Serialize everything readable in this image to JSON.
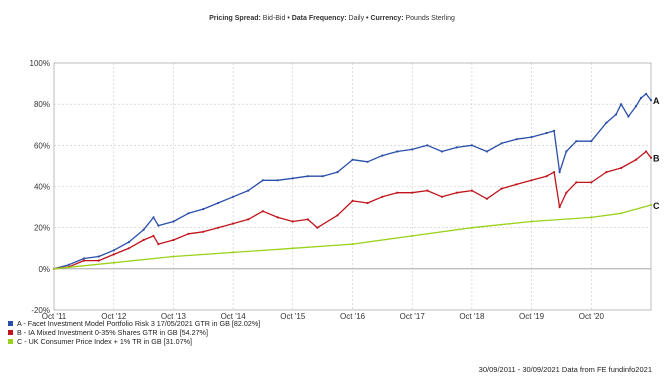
{
  "header": {
    "spread_label": "Pricing Spread:",
    "spread_value": "Bid-Bid",
    "frequency_label": "Data Frequency:",
    "frequency_value": "Daily",
    "currency_label": "Currency:",
    "currency_value": "Pounds Sterling",
    "separator": "•"
  },
  "footer": {
    "period": "30/09/2011 - 30/09/2021 Data from FE fundinfo2021"
  },
  "colors": {
    "series_a": "#2a4fa8",
    "series_b": "#c0151c",
    "series_c": "#9ad21c",
    "grid": "#c8c8c8",
    "zero_line": "#999999"
  },
  "chart_data": {
    "type": "line",
    "title": "",
    "xlabel": "",
    "ylabel": "",
    "x_ticks": [
      "Oct '11",
      "Oct '12",
      "Oct '13",
      "Oct '14",
      "Oct '15",
      "Oct '16",
      "Oct '17",
      "Oct '18",
      "Oct '19",
      "Oct '20"
    ],
    "y_ticks": [
      "-20%",
      "0%",
      "20%",
      "40%",
      "60%",
      "80%",
      "100%"
    ],
    "xlim": [
      "2011-09-30",
      "2021-09-30"
    ],
    "ylim": [
      -20,
      100
    ],
    "grid": true,
    "legend_position": "bottom-left",
    "series": [
      {
        "name": "A - Facet Investment Model Portfolio Risk 3 17/05/2021 GTR in GB [82.02%]",
        "end_label": "A",
        "color": "#2a4fa8",
        "points": [
          [
            "2011-09-30",
            0
          ],
          [
            "2011-12-31",
            2
          ],
          [
            "2012-03-31",
            5
          ],
          [
            "2012-06-30",
            6
          ],
          [
            "2012-09-30",
            9
          ],
          [
            "2012-12-31",
            13
          ],
          [
            "2013-03-31",
            19
          ],
          [
            "2013-05-31",
            25
          ],
          [
            "2013-06-30",
            21
          ],
          [
            "2013-09-30",
            23
          ],
          [
            "2013-12-31",
            27
          ],
          [
            "2014-03-31",
            29
          ],
          [
            "2014-06-30",
            32
          ],
          [
            "2014-09-30",
            35
          ],
          [
            "2014-12-31",
            38
          ],
          [
            "2015-03-31",
            43
          ],
          [
            "2015-06-30",
            43
          ],
          [
            "2015-09-30",
            44
          ],
          [
            "2015-12-31",
            45
          ],
          [
            "2016-03-31",
            45
          ],
          [
            "2016-06-30",
            47
          ],
          [
            "2016-09-30",
            53
          ],
          [
            "2016-12-31",
            52
          ],
          [
            "2017-03-31",
            55
          ],
          [
            "2017-06-30",
            57
          ],
          [
            "2017-09-30",
            58
          ],
          [
            "2017-12-31",
            60
          ],
          [
            "2018-03-31",
            57
          ],
          [
            "2018-06-30",
            59
          ],
          [
            "2018-09-30",
            60
          ],
          [
            "2018-12-31",
            57
          ],
          [
            "2019-03-31",
            61
          ],
          [
            "2019-06-30",
            63
          ],
          [
            "2019-09-30",
            64
          ],
          [
            "2019-12-31",
            66
          ],
          [
            "2020-02-15",
            67
          ],
          [
            "2020-03-20",
            47
          ],
          [
            "2020-04-30",
            57
          ],
          [
            "2020-06-30",
            62
          ],
          [
            "2020-09-30",
            62
          ],
          [
            "2020-12-31",
            71
          ],
          [
            "2021-02-28",
            75
          ],
          [
            "2021-03-31",
            80
          ],
          [
            "2021-05-15",
            74
          ],
          [
            "2021-06-30",
            79
          ],
          [
            "2021-07-31",
            83
          ],
          [
            "2021-08-31",
            85
          ],
          [
            "2021-09-30",
            82
          ]
        ]
      },
      {
        "name": "B - IA Mixed Investment 0-35% Shares GTR in GB [54.27%]",
        "end_label": "B",
        "color": "#c0151c",
        "points": [
          [
            "2011-09-30",
            0
          ],
          [
            "2011-12-31",
            1
          ],
          [
            "2012-03-31",
            4
          ],
          [
            "2012-06-30",
            4
          ],
          [
            "2012-09-30",
            7
          ],
          [
            "2012-12-31",
            10
          ],
          [
            "2013-03-31",
            14
          ],
          [
            "2013-05-31",
            16
          ],
          [
            "2013-06-30",
            12
          ],
          [
            "2013-09-30",
            14
          ],
          [
            "2013-12-31",
            17
          ],
          [
            "2014-03-31",
            18
          ],
          [
            "2014-06-30",
            20
          ],
          [
            "2014-09-30",
            22
          ],
          [
            "2014-12-31",
            24
          ],
          [
            "2015-03-31",
            28
          ],
          [
            "2015-06-30",
            25
          ],
          [
            "2015-09-30",
            23
          ],
          [
            "2015-12-31",
            24
          ],
          [
            "2016-02-28",
            20
          ],
          [
            "2016-06-30",
            26
          ],
          [
            "2016-09-30",
            33
          ],
          [
            "2016-12-31",
            32
          ],
          [
            "2017-03-31",
            35
          ],
          [
            "2017-06-30",
            37
          ],
          [
            "2017-09-30",
            37
          ],
          [
            "2017-12-31",
            38
          ],
          [
            "2018-03-31",
            35
          ],
          [
            "2018-06-30",
            37
          ],
          [
            "2018-09-30",
            38
          ],
          [
            "2018-12-31",
            34
          ],
          [
            "2019-03-31",
            39
          ],
          [
            "2019-06-30",
            41
          ],
          [
            "2019-09-30",
            43
          ],
          [
            "2019-12-31",
            45
          ],
          [
            "2020-02-15",
            47
          ],
          [
            "2020-03-20",
            30
          ],
          [
            "2020-04-30",
            37
          ],
          [
            "2020-06-30",
            42
          ],
          [
            "2020-09-30",
            42
          ],
          [
            "2020-12-31",
            47
          ],
          [
            "2021-03-31",
            49
          ],
          [
            "2021-06-30",
            53
          ],
          [
            "2021-08-31",
            57
          ],
          [
            "2021-09-30",
            54
          ]
        ]
      },
      {
        "name": "C - UK Consumer Price Index + 1% TR in GB [31.07%]",
        "end_label": "C",
        "color": "#9ad21c",
        "points": [
          [
            "2011-09-30",
            0
          ],
          [
            "2012-09-30",
            3
          ],
          [
            "2013-09-30",
            6
          ],
          [
            "2014-09-30",
            8
          ],
          [
            "2015-09-30",
            10
          ],
          [
            "2016-09-30",
            12
          ],
          [
            "2017-09-30",
            16
          ],
          [
            "2018-09-30",
            20
          ],
          [
            "2019-09-30",
            23
          ],
          [
            "2020-09-30",
            25
          ],
          [
            "2021-03-31",
            27
          ],
          [
            "2021-09-30",
            31
          ]
        ]
      }
    ]
  }
}
